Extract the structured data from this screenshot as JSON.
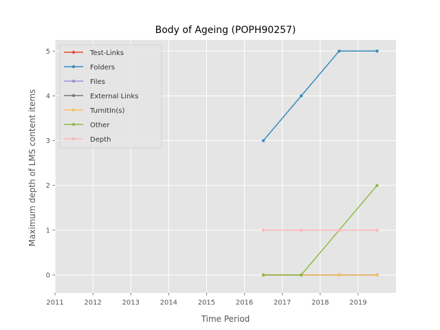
{
  "chart_data": {
    "type": "line",
    "title": "Body of Ageing (POPH90257)",
    "xlabel": "Time Period",
    "ylabel": "Maximum depth of LMS content items",
    "xlim": [
      2011,
      2020
    ],
    "ylim": [
      -0.4,
      5.25
    ],
    "xticks": [
      "2011",
      "2012",
      "2013",
      "2014",
      "2015",
      "2016",
      "2017",
      "2018",
      "2019"
    ],
    "yticks": [
      "0",
      "1",
      "2",
      "3",
      "4",
      "5"
    ],
    "grid": true,
    "legend_position": "top-left",
    "x": [
      2016.5,
      2017.5,
      2018.5,
      2019.5
    ],
    "series": [
      {
        "name": "Test-Links",
        "color": "#E24A33",
        "values": [
          0,
          0,
          0,
          0
        ]
      },
      {
        "name": "Folders",
        "color": "#348ABD",
        "values": [
          3,
          4,
          5,
          5
        ]
      },
      {
        "name": "Files",
        "color": "#988ED5",
        "values": [
          0,
          0,
          0,
          0
        ]
      },
      {
        "name": "External Links",
        "color": "#777777",
        "values": [
          0,
          0,
          0,
          0
        ]
      },
      {
        "name": "TurnItIn(s)",
        "color": "#FBC15E",
        "values": [
          0,
          0,
          0,
          0
        ]
      },
      {
        "name": "Other",
        "color": "#8EBA42",
        "values": [
          0,
          0,
          1,
          2
        ]
      },
      {
        "name": "Depth",
        "color": "#FFB5B8",
        "values": [
          1,
          1,
          1,
          1
        ]
      }
    ]
  }
}
